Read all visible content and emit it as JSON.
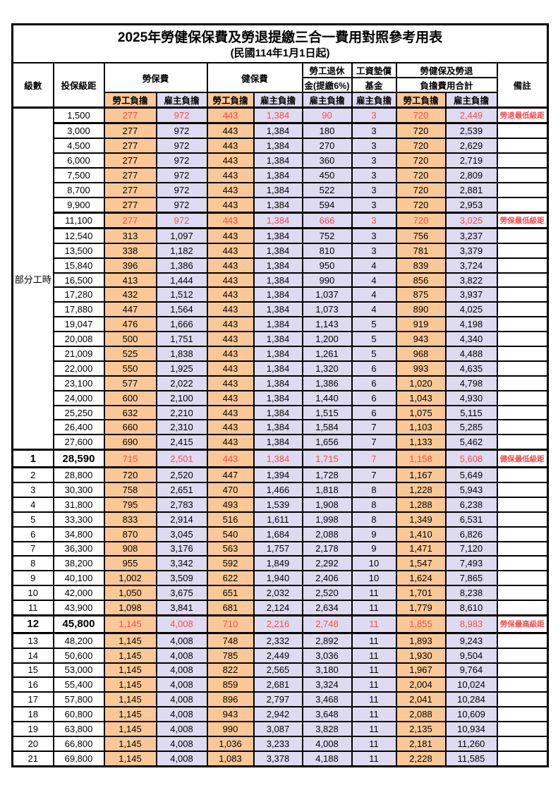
{
  "title": "2025年勞健保保費及勞退提繳三合一費用對照參考用表",
  "subtitle": "(民國114年1月1日起)",
  "colors": {
    "employee_column_bg": "#FAC896",
    "employer_column_bg": "#DEDBF0",
    "highlight_text": "#FF4A4A",
    "border": "#000000"
  },
  "table": {
    "headers": {
      "level": "級數",
      "bracket": "投保級距",
      "labor_insurance": "勞保費",
      "health_insurance": "健保費",
      "pension_line1": "勞工退休",
      "pension_line2": "金(提繳6%)",
      "wage_fund_line1": "工資墊償",
      "wage_fund_line2": "基金",
      "total_line1": "勞健保及勞退",
      "total_line2": "負擔費用合計",
      "remark": "備註",
      "employee_share": "勞工負擔",
      "employer_share": "雇主負擔"
    },
    "part_time": {
      "label": "部分工時",
      "rows": 23
    },
    "rows": [
      {
        "level": "",
        "bracket": "1,500",
        "values": [
          "277",
          "972",
          "443",
          "1,384",
          "90",
          "3",
          "720",
          "2,449"
        ],
        "remark": "勞退最低級距",
        "special": true
      },
      {
        "level": "",
        "bracket": "3,000",
        "values": [
          "277",
          "972",
          "443",
          "1,384",
          "180",
          "3",
          "720",
          "2,539"
        ],
        "remark": ""
      },
      {
        "level": "",
        "bracket": "4,500",
        "values": [
          "277",
          "972",
          "443",
          "1,384",
          "270",
          "3",
          "720",
          "2,629"
        ],
        "remark": ""
      },
      {
        "level": "",
        "bracket": "6,000",
        "values": [
          "277",
          "972",
          "443",
          "1,384",
          "360",
          "3",
          "720",
          "2,719"
        ],
        "remark": ""
      },
      {
        "level": "",
        "bracket": "7,500",
        "values": [
          "277",
          "972",
          "443",
          "1,384",
          "450",
          "3",
          "720",
          "2,809"
        ],
        "remark": ""
      },
      {
        "level": "",
        "bracket": "8,700",
        "values": [
          "277",
          "972",
          "443",
          "1,384",
          "522",
          "3",
          "720",
          "2,881"
        ],
        "remark": ""
      },
      {
        "level": "",
        "bracket": "9,900",
        "values": [
          "277",
          "972",
          "443",
          "1,384",
          "594",
          "3",
          "720",
          "2,953"
        ],
        "remark": ""
      },
      {
        "level": "",
        "bracket": "11,100",
        "values": [
          "277",
          "972",
          "443",
          "1,384",
          "666",
          "3",
          "720",
          "3,025"
        ],
        "remark": "勞保最低級距",
        "special": true
      },
      {
        "level": "",
        "bracket": "12,540",
        "values": [
          "313",
          "1,097",
          "443",
          "1,384",
          "752",
          "3",
          "756",
          "3,237"
        ],
        "remark": ""
      },
      {
        "level": "",
        "bracket": "13,500",
        "values": [
          "338",
          "1,182",
          "443",
          "1,384",
          "810",
          "3",
          "781",
          "3,379"
        ],
        "remark": ""
      },
      {
        "level": "",
        "bracket": "15,840",
        "values": [
          "396",
          "1,386",
          "443",
          "1,384",
          "950",
          "4",
          "839",
          "3,724"
        ],
        "remark": ""
      },
      {
        "level": "",
        "bracket": "16,500",
        "values": [
          "413",
          "1,444",
          "443",
          "1,384",
          "990",
          "4",
          "856",
          "3,822"
        ],
        "remark": ""
      },
      {
        "level": "",
        "bracket": "17,280",
        "values": [
          "432",
          "1,512",
          "443",
          "1,384",
          "1,037",
          "4",
          "875",
          "3,937"
        ],
        "remark": ""
      },
      {
        "level": "",
        "bracket": "17,880",
        "values": [
          "447",
          "1,564",
          "443",
          "1,384",
          "1,073",
          "4",
          "890",
          "4,025"
        ],
        "remark": ""
      },
      {
        "level": "",
        "bracket": "19,047",
        "values": [
          "476",
          "1,666",
          "443",
          "1,384",
          "1,143",
          "5",
          "919",
          "4,198"
        ],
        "remark": ""
      },
      {
        "level": "",
        "bracket": "20,008",
        "values": [
          "500",
          "1,751",
          "443",
          "1,384",
          "1,200",
          "5",
          "943",
          "4,340"
        ],
        "remark": ""
      },
      {
        "level": "",
        "bracket": "21,009",
        "values": [
          "525",
          "1,838",
          "443",
          "1,384",
          "1,261",
          "5",
          "968",
          "4,488"
        ],
        "remark": ""
      },
      {
        "level": "",
        "bracket": "22,000",
        "values": [
          "550",
          "1,925",
          "443",
          "1,384",
          "1,320",
          "6",
          "993",
          "4,635"
        ],
        "remark": ""
      },
      {
        "level": "",
        "bracket": "23,100",
        "values": [
          "577",
          "2,022",
          "443",
          "1,384",
          "1,386",
          "6",
          "1,020",
          "4,798"
        ],
        "remark": ""
      },
      {
        "level": "",
        "bracket": "24,000",
        "values": [
          "600",
          "2,100",
          "443",
          "1,384",
          "1,440",
          "6",
          "1,043",
          "4,930"
        ],
        "remark": ""
      },
      {
        "level": "",
        "bracket": "25,250",
        "values": [
          "632",
          "2,210",
          "443",
          "1,384",
          "1,515",
          "6",
          "1,075",
          "5,115"
        ],
        "remark": ""
      },
      {
        "level": "",
        "bracket": "26,400",
        "values": [
          "660",
          "2,310",
          "443",
          "1,384",
          "1,584",
          "7",
          "1,103",
          "5,285"
        ],
        "remark": ""
      },
      {
        "level": "",
        "bracket": "27,600",
        "values": [
          "690",
          "2,415",
          "443",
          "1,384",
          "1,656",
          "7",
          "1,133",
          "5,462"
        ],
        "remark": ""
      },
      {
        "level": "1",
        "bracket": "28,590",
        "values": [
          "715",
          "2,501",
          "443",
          "1,384",
          "1,715",
          "7",
          "1,158",
          "5,608"
        ],
        "remark": "健保最低級距",
        "special": true,
        "bold": true
      },
      {
        "level": "2",
        "bracket": "28,800",
        "values": [
          "720",
          "2,520",
          "447",
          "1,394",
          "1,728",
          "7",
          "1,167",
          "5,649"
        ],
        "remark": ""
      },
      {
        "level": "3",
        "bracket": "30,300",
        "values": [
          "758",
          "2,651",
          "470",
          "1,466",
          "1,818",
          "8",
          "1,228",
          "5,943"
        ],
        "remark": ""
      },
      {
        "level": "4",
        "bracket": "31,800",
        "values": [
          "795",
          "2,783",
          "493",
          "1,539",
          "1,908",
          "8",
          "1,288",
          "6,238"
        ],
        "remark": ""
      },
      {
        "level": "5",
        "bracket": "33,300",
        "values": [
          "833",
          "2,914",
          "516",
          "1,611",
          "1,998",
          "8",
          "1,349",
          "6,531"
        ],
        "remark": ""
      },
      {
        "level": "6",
        "bracket": "34,800",
        "values": [
          "870",
          "3,045",
          "540",
          "1,684",
          "2,088",
          "9",
          "1,410",
          "6,826"
        ],
        "remark": ""
      },
      {
        "level": "7",
        "bracket": "36,300",
        "values": [
          "908",
          "3,176",
          "563",
          "1,757",
          "2,178",
          "9",
          "1,471",
          "7,120"
        ],
        "remark": ""
      },
      {
        "level": "8",
        "bracket": "38,200",
        "values": [
          "955",
          "3,342",
          "592",
          "1,849",
          "2,292",
          "10",
          "1,547",
          "7,493"
        ],
        "remark": ""
      },
      {
        "level": "9",
        "bracket": "40,100",
        "values": [
          "1,002",
          "3,509",
          "622",
          "1,940",
          "2,406",
          "10",
          "1,624",
          "7,865"
        ],
        "remark": ""
      },
      {
        "level": "10",
        "bracket": "42,000",
        "values": [
          "1,050",
          "3,675",
          "651",
          "2,032",
          "2,520",
          "11",
          "1,701",
          "8,238"
        ],
        "remark": ""
      },
      {
        "level": "11",
        "bracket": "43,900",
        "values": [
          "1,098",
          "3,841",
          "681",
          "2,124",
          "2,634",
          "11",
          "1,779",
          "8,610"
        ],
        "remark": ""
      },
      {
        "level": "12",
        "bracket": "45,800",
        "values": [
          "1,145",
          "4,008",
          "710",
          "2,216",
          "2,748",
          "11",
          "1,855",
          "8,983"
        ],
        "remark": "勞保最高級距",
        "special": true,
        "bold": true
      },
      {
        "level": "13",
        "bracket": "48,200",
        "values": [
          "1,145",
          "4,008",
          "748",
          "2,332",
          "2,892",
          "11",
          "1,893",
          "9,243"
        ],
        "remark": ""
      },
      {
        "level": "14",
        "bracket": "50,600",
        "values": [
          "1,145",
          "4,008",
          "785",
          "2,449",
          "3,036",
          "11",
          "1,930",
          "9,504"
        ],
        "remark": ""
      },
      {
        "level": "15",
        "bracket": "53,000",
        "values": [
          "1,145",
          "4,008",
          "822",
          "2,565",
          "3,180",
          "11",
          "1,967",
          "9,764"
        ],
        "remark": ""
      },
      {
        "level": "16",
        "bracket": "55,400",
        "values": [
          "1,145",
          "4,008",
          "859",
          "2,681",
          "3,324",
          "11",
          "2,004",
          "10,024"
        ],
        "remark": ""
      },
      {
        "level": "17",
        "bracket": "57,800",
        "values": [
          "1,145",
          "4,008",
          "896",
          "2,797",
          "3,468",
          "11",
          "2,041",
          "10,284"
        ],
        "remark": ""
      },
      {
        "level": "18",
        "bracket": "60,800",
        "values": [
          "1,145",
          "4,008",
          "943",
          "2,942",
          "3,648",
          "11",
          "2,088",
          "10,609"
        ],
        "remark": ""
      },
      {
        "level": "19",
        "bracket": "63,800",
        "values": [
          "1,145",
          "4,008",
          "990",
          "3,087",
          "3,828",
          "11",
          "2,135",
          "10,934"
        ],
        "remark": ""
      },
      {
        "level": "20",
        "bracket": "66,800",
        "values": [
          "1,145",
          "4,008",
          "1,036",
          "3,233",
          "4,008",
          "11",
          "2,181",
          "11,260"
        ],
        "remark": ""
      },
      {
        "level": "21",
        "bracket": "69,800",
        "values": [
          "1,145",
          "4,008",
          "1,083",
          "3,378",
          "4,188",
          "11",
          "2,228",
          "11,585"
        ],
        "remark": ""
      }
    ]
  }
}
